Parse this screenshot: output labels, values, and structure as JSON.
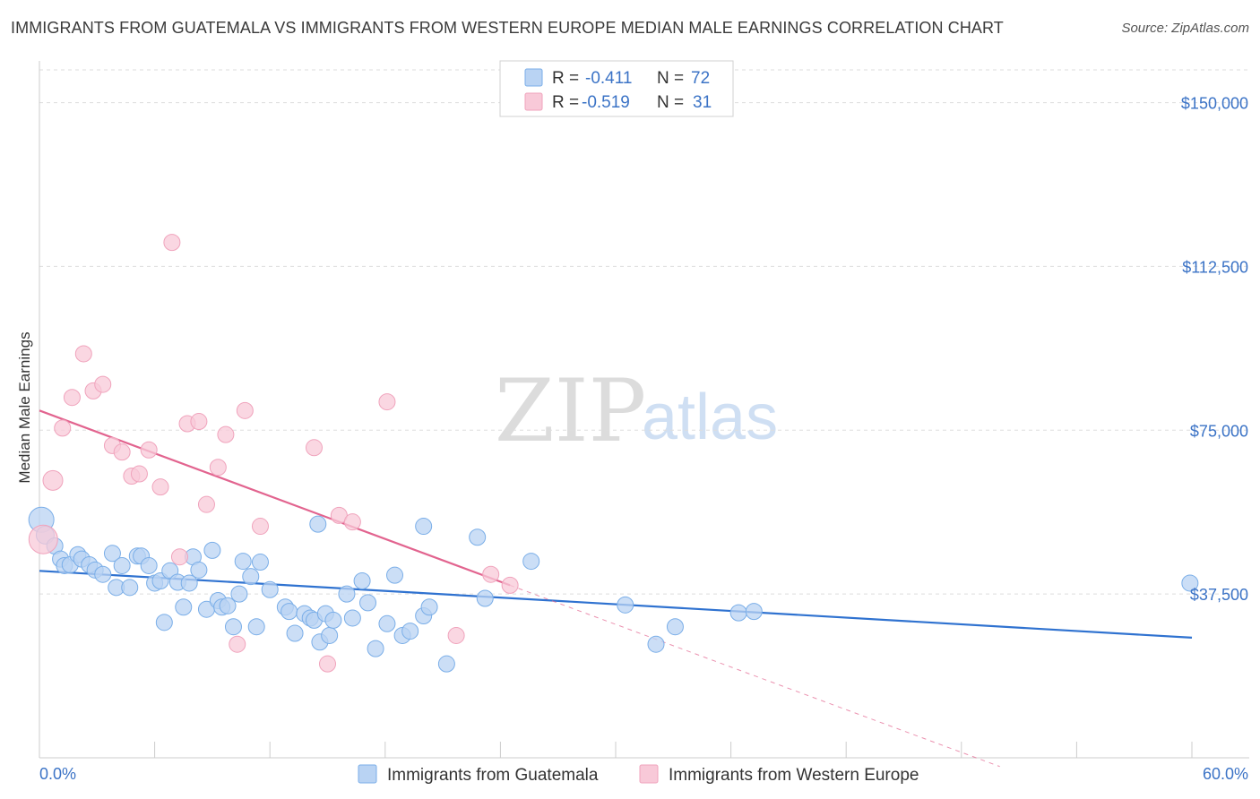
{
  "chart_data": {
    "type": "scatter",
    "title": "IMMIGRANTS FROM GUATEMALA VS IMMIGRANTS FROM WESTERN EUROPE MEDIAN MALE EARNINGS CORRELATION CHART",
    "source": "Source: ZipAtlas.com",
    "xlabel": "",
    "ylabel": "Median Male Earnings",
    "xlim": [
      0,
      60
    ],
    "ylim": [
      0,
      157500
    ],
    "x_tick_labels": [
      "0.0%",
      "60.0%"
    ],
    "y_ticks": [
      37500,
      75000,
      112500,
      150000
    ],
    "y_tick_labels": [
      "$37,500",
      "$75,000",
      "$112,500",
      "$150,000"
    ],
    "grid": true,
    "watermark": {
      "part1": "ZIP",
      "part2": "atlas"
    },
    "legend": [
      {
        "r_label": "R =",
        "r_value": "-0.411",
        "n_label": "N =",
        "n_value": "72"
      },
      {
        "r_label": "R =",
        "r_value": "-0.519",
        "n_label": "N =",
        "n_value": "31"
      }
    ],
    "series": [
      {
        "name": "Immigrants from Guatemala",
        "color": "#7aaee8",
        "fill": "#b9d3f3",
        "line_color": "#2f72d0",
        "trend": {
          "x": [
            0,
            60
          ],
          "y": [
            42800,
            27500
          ]
        },
        "points": [
          [
            0.1,
            54500,
            14
          ],
          [
            0.3,
            51000,
            10
          ],
          [
            0.8,
            48500,
            9
          ],
          [
            1.1,
            45500,
            9
          ],
          [
            1.3,
            44000,
            9
          ],
          [
            1.6,
            44200,
            9
          ],
          [
            2.0,
            46500,
            9
          ],
          [
            2.2,
            45500,
            9
          ],
          [
            2.6,
            44200,
            9
          ],
          [
            2.9,
            43000,
            9
          ],
          [
            3.3,
            42000,
            9
          ],
          [
            3.8,
            46800,
            9
          ],
          [
            4.0,
            39000,
            9
          ],
          [
            4.3,
            44000,
            9
          ],
          [
            4.7,
            39000,
            9
          ],
          [
            5.1,
            46200,
            9
          ],
          [
            5.3,
            46200,
            9
          ],
          [
            5.7,
            44000,
            9
          ],
          [
            6.0,
            40000,
            9
          ],
          [
            6.3,
            40500,
            9
          ],
          [
            6.5,
            31000,
            9
          ],
          [
            6.8,
            42800,
            9
          ],
          [
            7.2,
            40200,
            9
          ],
          [
            7.5,
            34500,
            9
          ],
          [
            7.8,
            40000,
            9
          ],
          [
            8.0,
            46000,
            9
          ],
          [
            8.3,
            43000,
            9
          ],
          [
            8.7,
            34000,
            9
          ],
          [
            9.0,
            47500,
            9
          ],
          [
            9.3,
            36000,
            9
          ],
          [
            9.5,
            34500,
            9
          ],
          [
            9.8,
            34800,
            9
          ],
          [
            10.1,
            30000,
            9
          ],
          [
            10.4,
            37500,
            9
          ],
          [
            10.6,
            45000,
            9
          ],
          [
            11.0,
            41500,
            9
          ],
          [
            11.3,
            30000,
            9
          ],
          [
            11.5,
            44800,
            9
          ],
          [
            12.0,
            38500,
            9
          ],
          [
            12.8,
            34500,
            9
          ],
          [
            13.0,
            33500,
            9
          ],
          [
            13.3,
            28500,
            9
          ],
          [
            13.8,
            33000,
            9
          ],
          [
            14.1,
            32000,
            9
          ],
          [
            14.3,
            31500,
            9
          ],
          [
            14.6,
            26500,
            9
          ],
          [
            14.9,
            33000,
            9
          ],
          [
            15.1,
            28000,
            9
          ],
          [
            15.3,
            31500,
            9
          ],
          [
            16.0,
            37500,
            9
          ],
          [
            16.3,
            32000,
            9
          ],
          [
            16.8,
            40500,
            9
          ],
          [
            17.1,
            35500,
            9
          ],
          [
            17.5,
            25000,
            9
          ],
          [
            18.1,
            30700,
            9
          ],
          [
            18.5,
            41800,
            9
          ],
          [
            18.9,
            28000,
            9
          ],
          [
            19.3,
            29000,
            9
          ],
          [
            20.0,
            32500,
            9
          ],
          [
            20.3,
            34500,
            9
          ],
          [
            14.5,
            53500,
            9
          ],
          [
            20.0,
            53000,
            9
          ],
          [
            21.2,
            21500,
            9
          ],
          [
            22.8,
            50500,
            9
          ],
          [
            23.2,
            36500,
            9
          ],
          [
            25.6,
            45000,
            9
          ],
          [
            30.5,
            35000,
            9
          ],
          [
            32.1,
            26000,
            9
          ],
          [
            33.1,
            30000,
            9
          ],
          [
            36.4,
            33200,
            9
          ],
          [
            37.2,
            33500,
            9
          ],
          [
            59.9,
            40000,
            9
          ]
        ]
      },
      {
        "name": "Immigrants from Western Europe",
        "color": "#f0a3bc",
        "fill": "#f8c9d8",
        "line_color": "#e2648f",
        "trend": {
          "x": [
            0,
            24.5
          ],
          "y": [
            79500,
            39500
          ]
        },
        "trend_extension": {
          "x": [
            24.5,
            50.0
          ],
          "y": [
            39500,
            -2000
          ]
        },
        "points": [
          [
            0.2,
            50000,
            16
          ],
          [
            0.7,
            63500,
            11
          ],
          [
            1.2,
            75500,
            9
          ],
          [
            1.7,
            82500,
            9
          ],
          [
            2.3,
            92500,
            9
          ],
          [
            2.8,
            84000,
            9
          ],
          [
            3.3,
            85500,
            9
          ],
          [
            3.8,
            71500,
            9
          ],
          [
            4.3,
            70000,
            9
          ],
          [
            4.8,
            64500,
            9
          ],
          [
            5.2,
            65000,
            9
          ],
          [
            5.7,
            70500,
            9
          ],
          [
            6.3,
            62000,
            9
          ],
          [
            6.9,
            118000,
            9
          ],
          [
            7.3,
            46000,
            9
          ],
          [
            7.7,
            76500,
            9
          ],
          [
            8.3,
            77000,
            9
          ],
          [
            8.7,
            58000,
            9
          ],
          [
            9.3,
            66500,
            9
          ],
          [
            9.7,
            74000,
            9
          ],
          [
            10.3,
            26000,
            9
          ],
          [
            10.7,
            79500,
            9
          ],
          [
            11.5,
            53000,
            9
          ],
          [
            14.3,
            71000,
            9
          ],
          [
            15.0,
            21500,
            9
          ],
          [
            15.6,
            55500,
            9
          ],
          [
            16.3,
            54000,
            9
          ],
          [
            18.1,
            81500,
            9
          ],
          [
            21.7,
            28000,
            9
          ],
          [
            23.5,
            42000,
            9
          ],
          [
            24.5,
            39500,
            9
          ]
        ]
      }
    ]
  }
}
